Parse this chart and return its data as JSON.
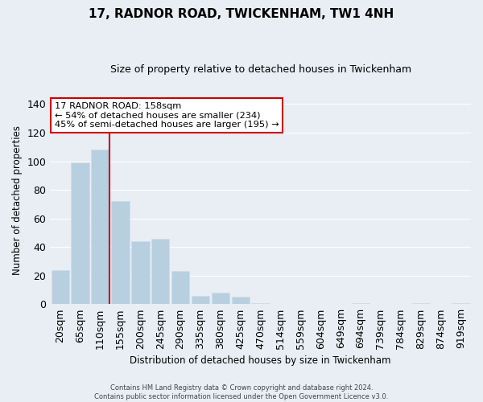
{
  "title": "17, RADNOR ROAD, TWICKENHAM, TW1 4NH",
  "subtitle": "Size of property relative to detached houses in Twickenham",
  "xlabel": "Distribution of detached houses by size in Twickenham",
  "ylabel": "Number of detached properties",
  "bar_labels": [
    "20sqm",
    "65sqm",
    "110sqm",
    "155sqm",
    "200sqm",
    "245sqm",
    "290sqm",
    "335sqm",
    "380sqm",
    "425sqm",
    "470sqm",
    "514sqm",
    "559sqm",
    "604sqm",
    "649sqm",
    "694sqm",
    "739sqm",
    "784sqm",
    "829sqm",
    "874sqm",
    "919sqm"
  ],
  "bar_values": [
    24,
    99,
    108,
    72,
    44,
    46,
    23,
    6,
    8,
    5,
    1,
    0,
    0,
    0,
    0,
    1,
    0,
    0,
    1,
    0,
    1
  ],
  "bar_color": "#b8cfe0",
  "bar_edge_color": "#d0dde8",
  "vline_color": "#cc0000",
  "ylim": [
    0,
    145
  ],
  "yticks": [
    0,
    20,
    40,
    60,
    80,
    100,
    120,
    140
  ],
  "annotation_title": "17 RADNOR ROAD: 158sqm",
  "annotation_line1": "← 54% of detached houses are smaller (234)",
  "annotation_line2": "45% of semi-detached houses are larger (195) →",
  "annotation_box_edge": "#cc0000",
  "footer_line1": "Contains HM Land Registry data © Crown copyright and database right 2024.",
  "footer_line2": "Contains public sector information licensed under the Open Government Licence v3.0.",
  "background_color": "#e8eef4",
  "plot_background": "#e8eef4",
  "grid_color": "#ffffff"
}
